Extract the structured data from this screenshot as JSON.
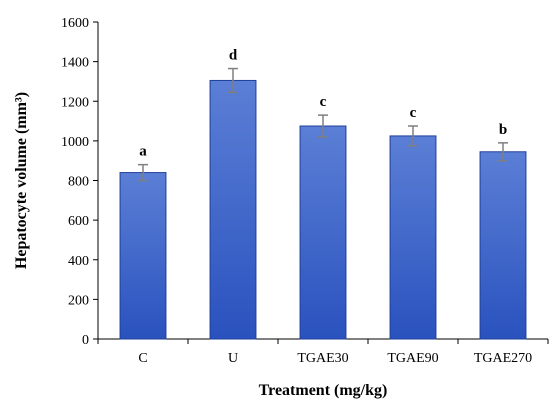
{
  "chart_data": {
    "type": "bar",
    "xlabel": "Treatment (mg/kg)",
    "ylabel": "Hepatocyte volume (mm³)",
    "categories": [
      "C",
      "U",
      "TGAE30",
      "TGAE90",
      "TGAE270"
    ],
    "values": [
      840,
      1305,
      1075,
      1025,
      945
    ],
    "errors": [
      40,
      60,
      55,
      50,
      45
    ],
    "significance_labels": [
      "a",
      "d",
      "c",
      "c",
      "b"
    ],
    "ylim": [
      0,
      1600
    ],
    "yticks": [
      0,
      200,
      400,
      600,
      800,
      1000,
      1200,
      1400,
      1600
    ],
    "grid": false,
    "bar_color_top": "#5b7fd6",
    "bar_color_bottom": "#2a52be",
    "bar_border": "#1f3f99",
    "error_color": "#7f7f7f"
  }
}
